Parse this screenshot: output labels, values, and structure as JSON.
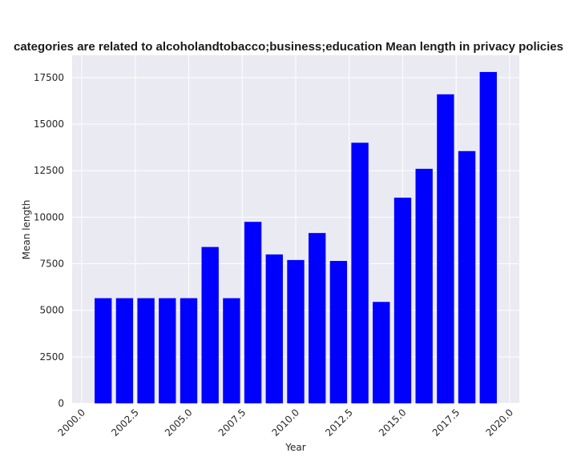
{
  "chart_data": {
    "type": "bar",
    "title": "categories are related to alcoholandtobacco;business;education Mean length in privacy policies",
    "xlabel": "Year",
    "ylabel": "Mean length",
    "x": [
      2001,
      2002,
      2003,
      2004,
      2005,
      2006,
      2007,
      2008,
      2009,
      2010,
      2011,
      2012,
      2013,
      2014,
      2015,
      2016,
      2017,
      2018,
      2019
    ],
    "values": [
      5650,
      5650,
      5650,
      5650,
      5650,
      8400,
      5650,
      9750,
      8000,
      7700,
      9150,
      7650,
      14000,
      5450,
      11050,
      12600,
      16600,
      13550,
      17800
    ],
    "xlim": [
      1999.55,
      2020.45
    ],
    "ylim": [
      0,
      18700
    ],
    "xticks": [
      "2000.0",
      "2002.5",
      "2005.0",
      "2007.5",
      "2010.0",
      "2012.5",
      "2015.0",
      "2017.5",
      "2020.0"
    ],
    "xtick_values": [
      2000.0,
      2002.5,
      2005.0,
      2007.5,
      2010.0,
      2012.5,
      2015.0,
      2017.5,
      2020.0
    ],
    "yticks": [
      "0",
      "2500",
      "5000",
      "7500",
      "10000",
      "12500",
      "15000",
      "17500"
    ],
    "ytick_values": [
      0,
      2500,
      5000,
      7500,
      10000,
      12500,
      15000,
      17500
    ],
    "grid": true,
    "bar_color": "#0000ff",
    "plot_background": "#eaeaf2",
    "grid_color": "#ffffff"
  }
}
